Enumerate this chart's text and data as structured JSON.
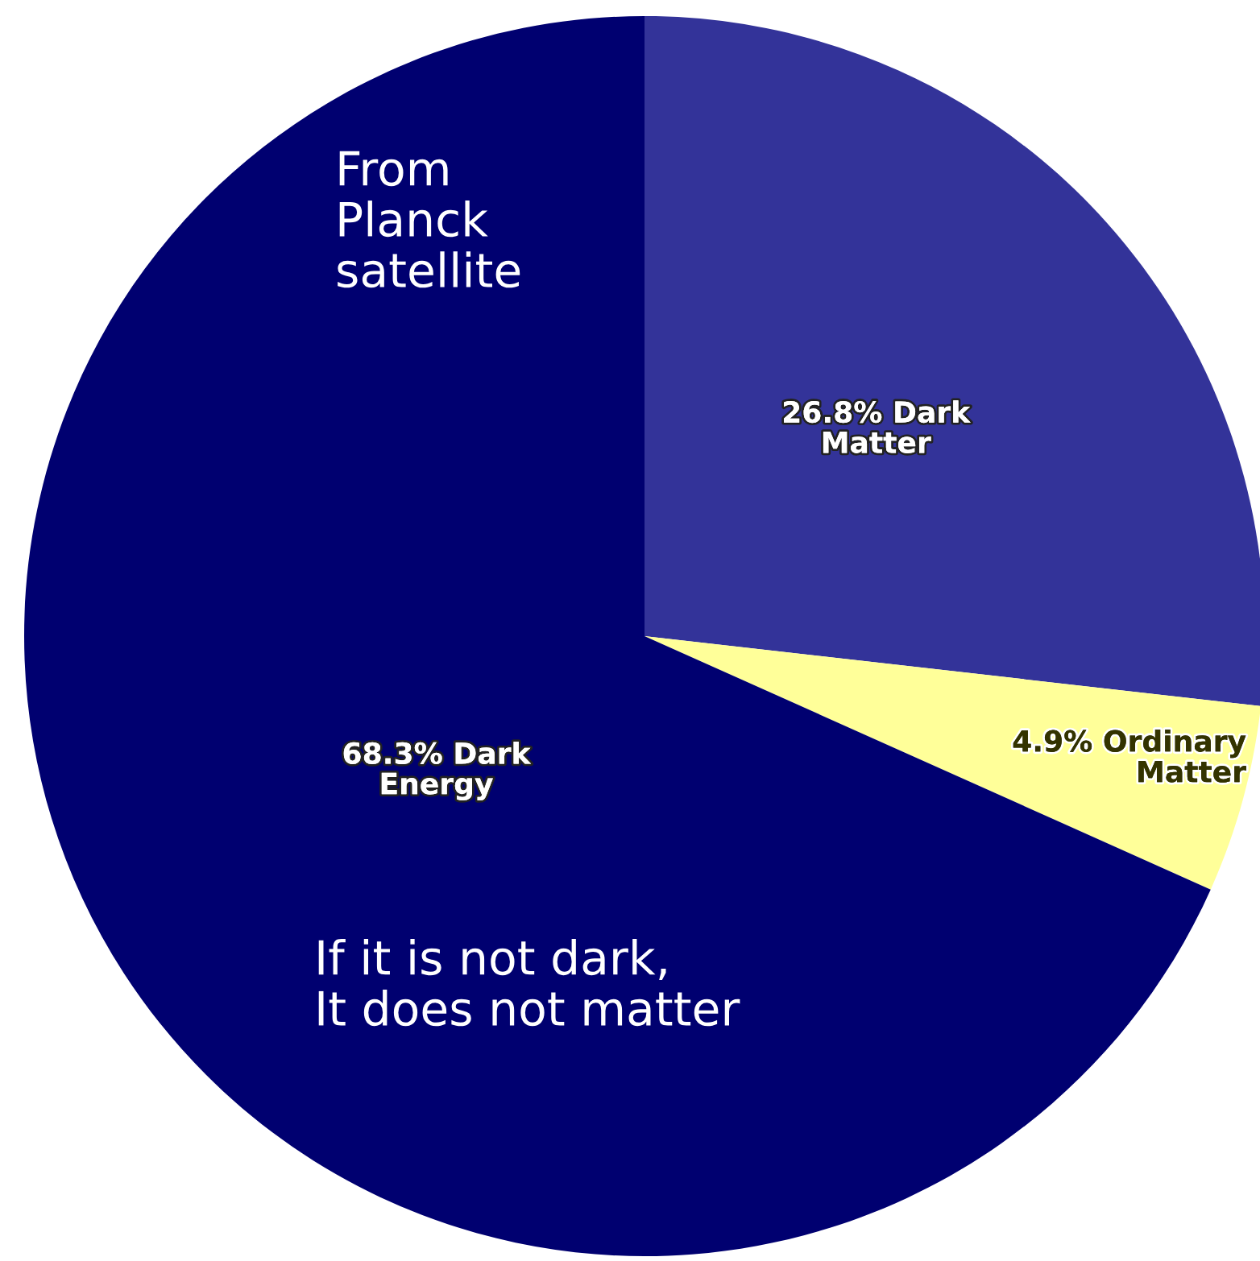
{
  "chart_data": {
    "type": "pie",
    "categories": [
      "Dark Matter",
      "Ordinary Matter",
      "Dark Energy"
    ],
    "values": [
      26.8,
      4.9,
      68.3
    ],
    "value_labels": [
      "26.8%",
      "4.9%",
      "68.3%"
    ],
    "colors": [
      "#333399",
      "#ffff99",
      "#000070"
    ],
    "annotations": [
      "From\nPlanck\nsatellite",
      "If it is not dark,\nIt does not matter"
    ]
  }
}
